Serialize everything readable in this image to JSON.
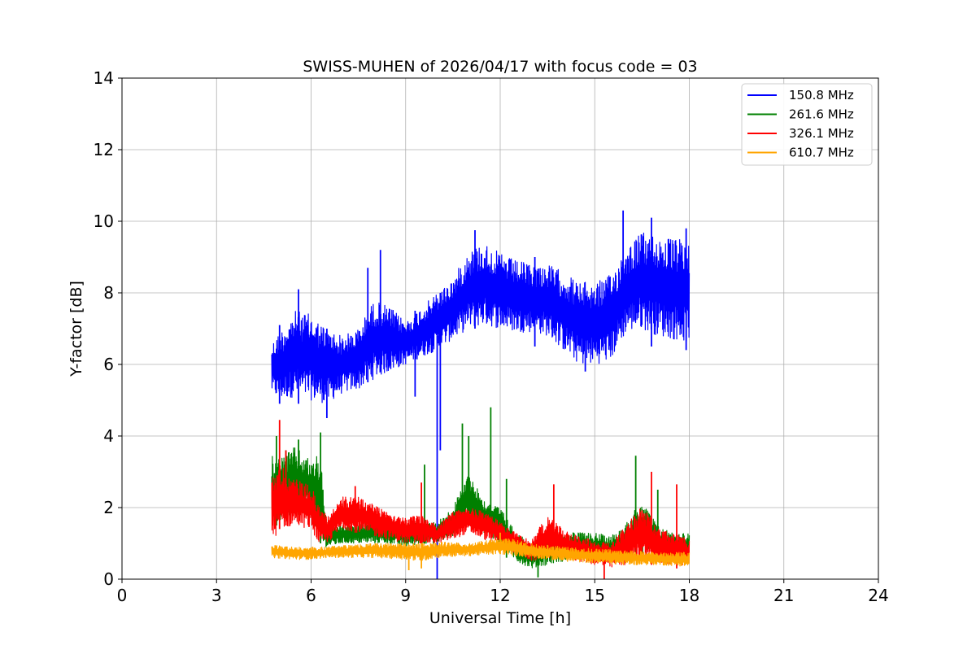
{
  "chart_data": {
    "type": "line",
    "title": "SWISS-MUHEN of 2026/04/17 with focus code = 03",
    "xlabel": "Universal Time [h]",
    "ylabel": "Y-factor [dB]",
    "xlim": [
      0,
      24
    ],
    "ylim": [
      0,
      14
    ],
    "xticks": [
      "0",
      "3",
      "6",
      "9",
      "12",
      "15",
      "18",
      "21",
      "24"
    ],
    "yticks": [
      "0",
      "2",
      "4",
      "6",
      "8",
      "10",
      "12",
      "14"
    ],
    "grid": true,
    "legend_position": "top-right",
    "series": [
      {
        "name": "150.8 MHz",
        "color": "#0000ff",
        "band": [
          {
            "x": 4.75,
            "low": 5.2,
            "high": 6.6
          },
          {
            "x": 5.0,
            "low": 5.0,
            "high": 6.9
          },
          {
            "x": 5.5,
            "low": 5.1,
            "high": 7.5
          },
          {
            "x": 6.0,
            "low": 5.0,
            "high": 7.4
          },
          {
            "x": 6.5,
            "low": 4.9,
            "high": 7.0
          },
          {
            "x": 7.0,
            "low": 5.2,
            "high": 6.8
          },
          {
            "x": 7.5,
            "low": 5.3,
            "high": 7.0
          },
          {
            "x": 8.0,
            "low": 5.6,
            "high": 7.8
          },
          {
            "x": 8.5,
            "low": 5.8,
            "high": 7.6
          },
          {
            "x": 9.0,
            "low": 6.0,
            "high": 7.2
          },
          {
            "x": 9.5,
            "low": 6.2,
            "high": 7.6
          },
          {
            "x": 10.0,
            "low": 6.4,
            "high": 8.0
          },
          {
            "x": 10.5,
            "low": 6.7,
            "high": 8.4
          },
          {
            "x": 11.0,
            "low": 7.0,
            "high": 9.2
          },
          {
            "x": 11.5,
            "low": 7.1,
            "high": 9.4
          },
          {
            "x": 12.0,
            "low": 7.0,
            "high": 9.1
          },
          {
            "x": 12.5,
            "low": 6.9,
            "high": 8.9
          },
          {
            "x": 13.0,
            "low": 6.9,
            "high": 8.8
          },
          {
            "x": 13.5,
            "low": 6.8,
            "high": 8.8
          },
          {
            "x": 14.0,
            "low": 6.4,
            "high": 8.6
          },
          {
            "x": 14.5,
            "low": 6.0,
            "high": 8.3
          },
          {
            "x": 15.0,
            "low": 6.0,
            "high": 8.3
          },
          {
            "x": 15.5,
            "low": 6.1,
            "high": 8.5
          },
          {
            "x": 16.0,
            "low": 6.9,
            "high": 9.3
          },
          {
            "x": 16.5,
            "low": 7.0,
            "high": 9.7
          },
          {
            "x": 17.0,
            "low": 6.8,
            "high": 9.6
          },
          {
            "x": 17.5,
            "low": 6.7,
            "high": 9.5
          },
          {
            "x": 18.0,
            "low": 6.6,
            "high": 9.5
          }
        ],
        "spikes": [
          {
            "x": 5.0,
            "low": 4.9,
            "high": 7.1
          },
          {
            "x": 5.6,
            "low": 4.9,
            "high": 8.1
          },
          {
            "x": 6.5,
            "low": 4.5,
            "high": 7.0
          },
          {
            "x": 7.8,
            "low": 5.5,
            "high": 8.7
          },
          {
            "x": 8.2,
            "low": 5.8,
            "high": 9.2
          },
          {
            "x": 9.3,
            "low": 5.1,
            "high": 7.5
          },
          {
            "x": 10.0,
            "low": 0.0,
            "high": 6.8
          },
          {
            "x": 10.1,
            "low": 3.6,
            "high": 8.0
          },
          {
            "x": 11.2,
            "low": 7.0,
            "high": 9.75
          },
          {
            "x": 13.1,
            "low": 6.5,
            "high": 9.0
          },
          {
            "x": 14.7,
            "low": 5.8,
            "high": 8.0
          },
          {
            "x": 15.9,
            "low": 6.9,
            "high": 10.3
          },
          {
            "x": 16.8,
            "low": 6.5,
            "high": 10.1
          },
          {
            "x": 17.9,
            "low": 6.4,
            "high": 9.8
          }
        ]
      },
      {
        "name": "261.6 MHz",
        "color": "#008000",
        "band": [
          {
            "x": 4.75,
            "low": 1.4,
            "high": 3.5
          },
          {
            "x": 5.0,
            "low": 1.6,
            "high": 3.4
          },
          {
            "x": 5.5,
            "low": 1.8,
            "high": 3.7
          },
          {
            "x": 6.0,
            "low": 1.8,
            "high": 3.3
          },
          {
            "x": 6.3,
            "low": 0.9,
            "high": 3.6
          },
          {
            "x": 6.5,
            "low": 0.9,
            "high": 1.5
          },
          {
            "x": 7.0,
            "low": 1.0,
            "high": 1.5
          },
          {
            "x": 7.5,
            "low": 1.0,
            "high": 1.5
          },
          {
            "x": 8.0,
            "low": 1.0,
            "high": 1.7
          },
          {
            "x": 8.5,
            "low": 1.0,
            "high": 1.5
          },
          {
            "x": 9.0,
            "low": 0.9,
            "high": 1.5
          },
          {
            "x": 9.5,
            "low": 1.0,
            "high": 1.6
          },
          {
            "x": 10.0,
            "low": 1.0,
            "high": 1.6
          },
          {
            "x": 10.5,
            "low": 1.2,
            "high": 2.0
          },
          {
            "x": 11.0,
            "low": 1.6,
            "high": 3.0
          },
          {
            "x": 11.5,
            "low": 1.3,
            "high": 2.2
          },
          {
            "x": 12.0,
            "low": 1.0,
            "high": 2.0
          },
          {
            "x": 12.5,
            "low": 0.5,
            "high": 1.3
          },
          {
            "x": 13.0,
            "low": 0.3,
            "high": 1.0
          },
          {
            "x": 13.5,
            "low": 0.4,
            "high": 1.2
          },
          {
            "x": 14.0,
            "low": 0.5,
            "high": 1.3
          },
          {
            "x": 14.5,
            "low": 0.6,
            "high": 1.3
          },
          {
            "x": 15.0,
            "low": 0.5,
            "high": 1.3
          },
          {
            "x": 15.5,
            "low": 0.5,
            "high": 1.2
          },
          {
            "x": 16.0,
            "low": 0.6,
            "high": 1.6
          },
          {
            "x": 16.5,
            "low": 0.7,
            "high": 2.2
          },
          {
            "x": 17.0,
            "low": 0.6,
            "high": 1.5
          },
          {
            "x": 17.5,
            "low": 0.5,
            "high": 1.3
          },
          {
            "x": 18.0,
            "low": 0.5,
            "high": 1.3
          }
        ],
        "spikes": [
          {
            "x": 4.9,
            "low": 1.5,
            "high": 4.0
          },
          {
            "x": 5.2,
            "low": 1.6,
            "high": 3.6
          },
          {
            "x": 5.6,
            "low": 1.8,
            "high": 3.9
          },
          {
            "x": 6.3,
            "low": 1.0,
            "high": 4.1
          },
          {
            "x": 9.6,
            "low": 1.0,
            "high": 3.2
          },
          {
            "x": 10.8,
            "low": 1.5,
            "high": 4.35
          },
          {
            "x": 11.0,
            "low": 1.6,
            "high": 4.0
          },
          {
            "x": 11.7,
            "low": 1.2,
            "high": 4.8
          },
          {
            "x": 12.2,
            "low": 0.6,
            "high": 2.8
          },
          {
            "x": 13.2,
            "low": 0.05,
            "high": 1.0
          },
          {
            "x": 16.3,
            "low": 0.6,
            "high": 3.45
          },
          {
            "x": 17.0,
            "low": 0.5,
            "high": 2.5
          }
        ]
      },
      {
        "name": "326.1 MHz",
        "color": "#ff0000",
        "band": [
          {
            "x": 4.75,
            "low": 1.0,
            "high": 3.0
          },
          {
            "x": 5.0,
            "low": 1.4,
            "high": 3.2
          },
          {
            "x": 5.5,
            "low": 1.5,
            "high": 2.8
          },
          {
            "x": 6.0,
            "low": 1.4,
            "high": 2.6
          },
          {
            "x": 6.3,
            "low": 0.9,
            "high": 2.0
          },
          {
            "x": 6.5,
            "low": 1.0,
            "high": 1.8
          },
          {
            "x": 7.0,
            "low": 1.4,
            "high": 2.3
          },
          {
            "x": 7.5,
            "low": 1.3,
            "high": 2.3
          },
          {
            "x": 8.0,
            "low": 1.2,
            "high": 2.1
          },
          {
            "x": 8.5,
            "low": 1.1,
            "high": 1.9
          },
          {
            "x": 9.0,
            "low": 1.0,
            "high": 1.7
          },
          {
            "x": 9.5,
            "low": 1.0,
            "high": 1.8
          },
          {
            "x": 10.0,
            "low": 1.0,
            "high": 1.5
          },
          {
            "x": 10.5,
            "low": 1.1,
            "high": 1.9
          },
          {
            "x": 11.0,
            "low": 1.3,
            "high": 2.0
          },
          {
            "x": 11.5,
            "low": 1.1,
            "high": 1.9
          },
          {
            "x": 12.0,
            "low": 1.0,
            "high": 1.6
          },
          {
            "x": 12.5,
            "low": 0.7,
            "high": 1.3
          },
          {
            "x": 13.0,
            "low": 0.5,
            "high": 1.1
          },
          {
            "x": 13.5,
            "low": 0.6,
            "high": 1.8
          },
          {
            "x": 14.0,
            "low": 0.6,
            "high": 1.4
          },
          {
            "x": 14.5,
            "low": 0.5,
            "high": 1.2
          },
          {
            "x": 15.0,
            "low": 0.4,
            "high": 1.1
          },
          {
            "x": 15.5,
            "low": 0.3,
            "high": 1.0
          },
          {
            "x": 16.0,
            "low": 0.4,
            "high": 1.5
          },
          {
            "x": 16.5,
            "low": 0.6,
            "high": 2.1
          },
          {
            "x": 17.0,
            "low": 0.4,
            "high": 1.4
          },
          {
            "x": 17.5,
            "low": 0.4,
            "high": 1.3
          },
          {
            "x": 18.0,
            "low": 0.4,
            "high": 1.1
          }
        ],
        "spikes": [
          {
            "x": 5.0,
            "low": 1.4,
            "high": 4.45
          },
          {
            "x": 5.2,
            "low": 1.5,
            "high": 3.6
          },
          {
            "x": 7.4,
            "low": 1.3,
            "high": 2.6
          },
          {
            "x": 9.5,
            "low": 1.0,
            "high": 2.7
          },
          {
            "x": 13.7,
            "low": 0.6,
            "high": 2.65
          },
          {
            "x": 15.3,
            "low": 0.0,
            "high": 1.0
          },
          {
            "x": 16.8,
            "low": 0.4,
            "high": 3.0
          },
          {
            "x": 17.6,
            "low": 0.3,
            "high": 2.65
          }
        ]
      },
      {
        "name": "610.7 MHz",
        "color": "#ffa500",
        "band": [
          {
            "x": 4.75,
            "low": 0.6,
            "high": 0.95
          },
          {
            "x": 5.5,
            "low": 0.55,
            "high": 0.9
          },
          {
            "x": 6.0,
            "low": 0.55,
            "high": 0.9
          },
          {
            "x": 6.5,
            "low": 0.6,
            "high": 0.9
          },
          {
            "x": 7.0,
            "low": 0.6,
            "high": 0.95
          },
          {
            "x": 8.0,
            "low": 0.6,
            "high": 1.0
          },
          {
            "x": 9.0,
            "low": 0.55,
            "high": 1.0
          },
          {
            "x": 9.5,
            "low": 0.5,
            "high": 1.0
          },
          {
            "x": 10.0,
            "low": 0.6,
            "high": 1.05
          },
          {
            "x": 11.0,
            "low": 0.65,
            "high": 1.0
          },
          {
            "x": 12.0,
            "low": 0.7,
            "high": 1.15
          },
          {
            "x": 12.5,
            "low": 0.65,
            "high": 1.1
          },
          {
            "x": 13.0,
            "low": 0.6,
            "high": 1.0
          },
          {
            "x": 14.0,
            "low": 0.5,
            "high": 0.9
          },
          {
            "x": 15.0,
            "low": 0.45,
            "high": 0.85
          },
          {
            "x": 16.0,
            "low": 0.4,
            "high": 0.8
          },
          {
            "x": 17.0,
            "low": 0.4,
            "high": 0.75
          },
          {
            "x": 18.0,
            "low": 0.35,
            "high": 0.75
          }
        ],
        "spikes": [
          {
            "x": 9.1,
            "low": 0.25,
            "high": 0.9
          },
          {
            "x": 9.5,
            "low": 0.3,
            "high": 1.0
          },
          {
            "x": 12.0,
            "low": 0.7,
            "high": 1.3
          }
        ]
      }
    ]
  }
}
